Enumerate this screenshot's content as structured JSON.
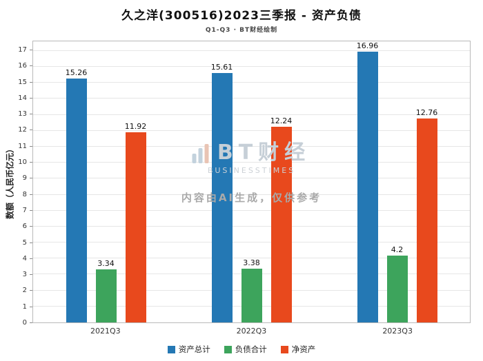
{
  "chart_data": {
    "type": "bar",
    "title": "久之洋(300516)2023三季报 - 资产负债",
    "subtitle": "Q1-Q3 · BT财经绘制",
    "ylabel": "数额（人民币亿元）",
    "xlabel": "",
    "categories": [
      "2021Q3",
      "2022Q3",
      "2023Q3"
    ],
    "series": [
      {
        "name": "资产总计",
        "color": "#2478b4",
        "values": [
          15.26,
          15.61,
          16.96
        ]
      },
      {
        "name": "负债合计",
        "color": "#3da45c",
        "values": [
          3.34,
          3.38,
          4.2
        ]
      },
      {
        "name": "净资产",
        "color": "#e8491d",
        "values": [
          11.92,
          12.24,
          12.76
        ]
      }
    ],
    "ylim": [
      0,
      17
    ],
    "ytick_step": 1,
    "grid": true,
    "legend_position": "bottom"
  },
  "watermark": {
    "brand": "BT财经",
    "brand_sub": "BUSINESSTIMES",
    "note": "内容由AI生成，仅供参考"
  }
}
